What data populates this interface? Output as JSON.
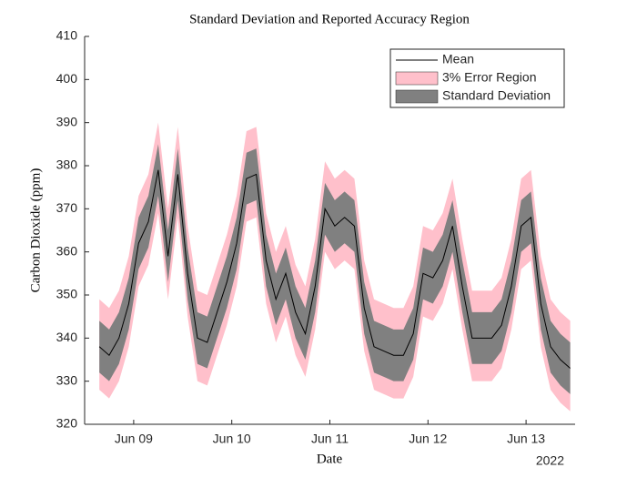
{
  "chart_data": {
    "type": "line",
    "title": "Standard Deviation and Reported Accuracy Region",
    "xlabel": "Date",
    "ylabel": "Carbon Dioxide (ppm)",
    "x_year_label": "2022",
    "x": [
      8.65,
      8.75,
      8.85,
      8.95,
      9.05,
      9.15,
      9.25,
      9.35,
      9.45,
      9.55,
      9.65,
      9.75,
      9.85,
      9.95,
      10.05,
      10.15,
      10.25,
      10.35,
      10.45,
      10.55,
      10.65,
      10.75,
      10.85,
      10.95,
      11.05,
      11.15,
      11.25,
      11.35,
      11.45,
      11.55,
      11.65,
      11.75,
      11.85,
      11.95,
      12.05,
      12.15,
      12.25,
      12.35,
      12.45,
      12.55,
      12.65,
      12.75,
      12.85,
      12.95,
      13.05,
      13.15,
      13.25,
      13.35,
      13.45
    ],
    "series": [
      {
        "name": "Mean",
        "color": "#000000",
        "values": [
          338,
          336,
          340,
          348,
          362,
          367,
          379,
          359,
          378,
          355,
          340,
          339,
          346,
          353,
          362,
          377,
          378,
          358,
          349,
          355,
          346,
          341,
          352,
          370,
          366,
          368,
          366,
          347,
          338,
          337,
          336,
          336,
          341,
          355,
          354,
          358,
          366,
          352,
          340,
          340,
          340,
          343,
          352,
          366,
          368,
          348,
          338,
          335,
          333
        ]
      },
      {
        "name": "3% Error Region",
        "color": "#ffc0cb",
        "lower": [
          328,
          326,
          330,
          338,
          352,
          357,
          369,
          349,
          368,
          345,
          330,
          329,
          336,
          343,
          352,
          367,
          368,
          348,
          339,
          345,
          336,
          331,
          342,
          360,
          356,
          358,
          356,
          337,
          328,
          327,
          326,
          326,
          331,
          345,
          344,
          348,
          356,
          342,
          330,
          330,
          330,
          333,
          342,
          356,
          358,
          338,
          328,
          325,
          323
        ],
        "upper": [
          349,
          347,
          351,
          359,
          373,
          378,
          390,
          370,
          389,
          366,
          351,
          350,
          357,
          364,
          373,
          388,
          389,
          369,
          360,
          366,
          357,
          352,
          363,
          381,
          377,
          379,
          377,
          358,
          349,
          348,
          347,
          347,
          352,
          366,
          365,
          369,
          377,
          363,
          351,
          351,
          351,
          354,
          363,
          377,
          379,
          359,
          349,
          346,
          344
        ]
      },
      {
        "name": "Standard Deviation",
        "color": "#808080",
        "lower": [
          332,
          330,
          334,
          342,
          356,
          361,
          373,
          353,
          372,
          349,
          334,
          333,
          340,
          347,
          356,
          371,
          372,
          352,
          343,
          349,
          340,
          335,
          346,
          364,
          360,
          362,
          360,
          341,
          332,
          331,
          330,
          330,
          335,
          349,
          348,
          352,
          360,
          346,
          334,
          334,
          334,
          337,
          346,
          360,
          362,
          342,
          332,
          329,
          327
        ],
        "upper": [
          344,
          342,
          346,
          354,
          368,
          373,
          385,
          365,
          384,
          361,
          346,
          345,
          352,
          359,
          368,
          383,
          384,
          364,
          355,
          361,
          352,
          347,
          358,
          376,
          372,
          374,
          372,
          353,
          344,
          343,
          342,
          342,
          347,
          361,
          360,
          364,
          372,
          358,
          346,
          346,
          346,
          349,
          358,
          372,
          374,
          354,
          344,
          341,
          339
        ]
      }
    ],
    "xlim": [
      8.5,
      13.5
    ],
    "xticks": [
      {
        "value": 9,
        "label": "Jun 09"
      },
      {
        "value": 10,
        "label": "Jun 10"
      },
      {
        "value": 11,
        "label": "Jun 11"
      },
      {
        "value": 12,
        "label": "Jun 12"
      },
      {
        "value": 13,
        "label": "Jun 13"
      }
    ],
    "ylim": [
      320,
      410
    ],
    "yticks": [
      320,
      330,
      340,
      350,
      360,
      370,
      380,
      390,
      400,
      410
    ],
    "grid": false,
    "legend": "northeast"
  }
}
